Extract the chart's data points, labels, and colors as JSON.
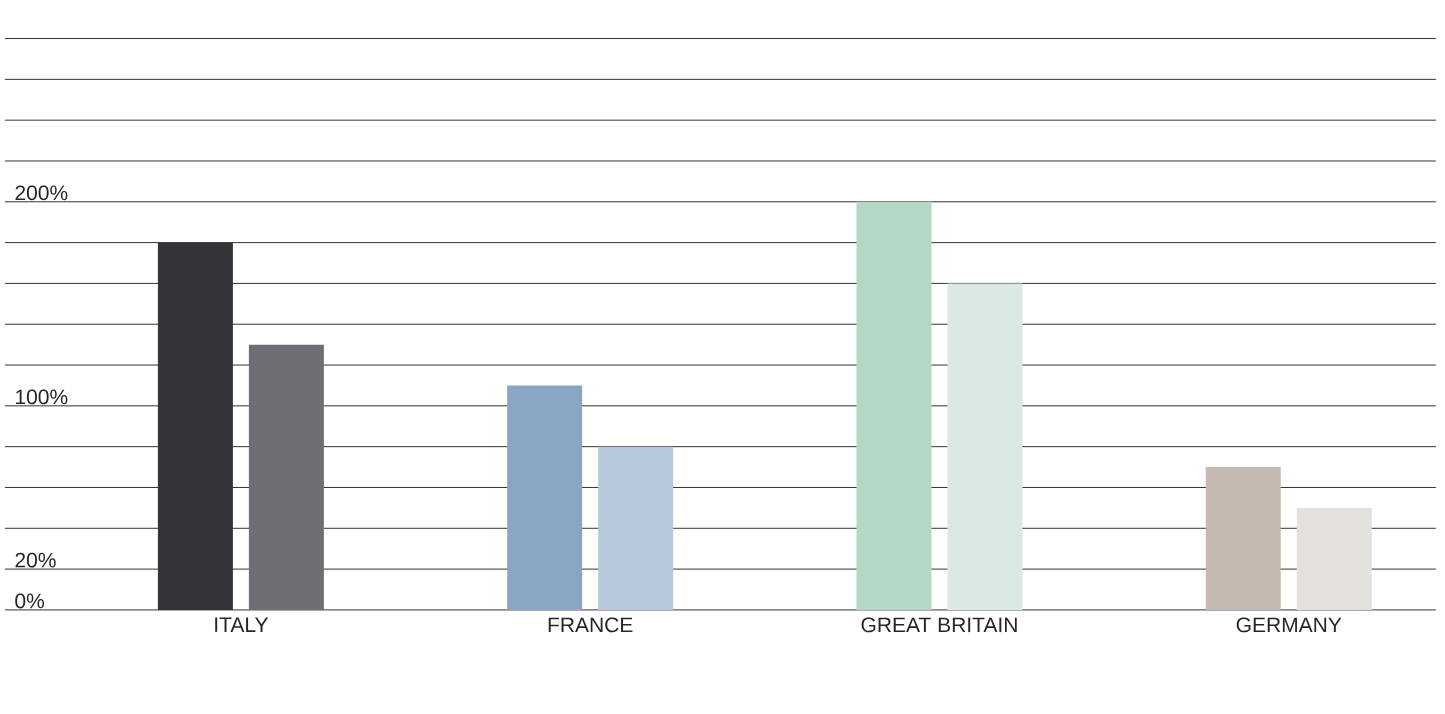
{
  "chart_data": {
    "type": "bar",
    "categories": [
      "ITALY",
      "FRANCE",
      "GREAT BRITAIN",
      "GERMANY"
    ],
    "series": [
      {
        "values": [
          180,
          110,
          200,
          70
        ],
        "colors": [
          "#333438",
          "#8aa5c4",
          "#b5d7c6",
          "#c4bab1"
        ]
      },
      {
        "values": [
          130,
          80,
          160,
          50
        ],
        "colors": [
          "#6e6f73",
          "#b8c8dc",
          "#dae9e2",
          "#e4e1dc"
        ]
      }
    ],
    "ylim": [
      0,
      320
    ],
    "yticks": [
      {
        "value": 0,
        "label": "0%"
      },
      {
        "value": 20,
        "label": "20%"
      },
      {
        "value": 40,
        "label": null
      },
      {
        "value": 60,
        "label": null
      },
      {
        "value": 80,
        "label": null
      },
      {
        "value": 100,
        "label": "100%"
      },
      {
        "value": 120,
        "label": null
      },
      {
        "value": 140,
        "label": null
      },
      {
        "value": 160,
        "label": null
      },
      {
        "value": 180,
        "label": null
      },
      {
        "value": 200,
        "label": "200%"
      },
      {
        "value": 220,
        "label": null
      },
      {
        "value": 240,
        "label": null
      },
      {
        "value": 260,
        "label": null
      },
      {
        "value": 280,
        "label": null
      },
      {
        "value": 300,
        "label": null
      },
      {
        "value": 320,
        "label": null
      }
    ],
    "grid": "y"
  }
}
